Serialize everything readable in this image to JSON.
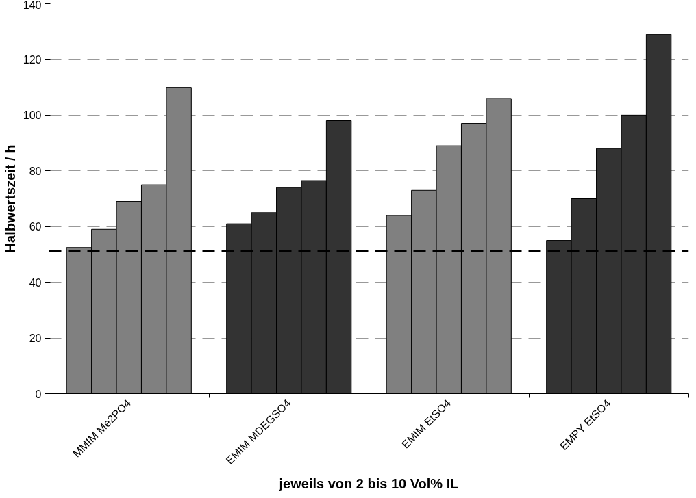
{
  "chart_data": {
    "type": "bar",
    "xlabel": "jeweils von 2 bis 10 Vol% IL",
    "ylabel": "Halbwertszeit / h",
    "categories": [
      "MMIM Me2PO4",
      "EMIM MDEGSO4",
      "EMIM EtSO4",
      "EMPY EtSO4"
    ],
    "series": [
      {
        "colors": [
          "#808080",
          "#333333",
          "#808080",
          "#333333"
        ],
        "values": [
          52.5,
          61,
          64,
          55
        ]
      },
      {
        "colors": [
          "#808080",
          "#333333",
          "#808080",
          "#333333"
        ],
        "values": [
          59,
          65,
          73,
          70
        ]
      },
      {
        "colors": [
          "#808080",
          "#333333",
          "#808080",
          "#333333"
        ],
        "values": [
          69,
          74,
          89,
          88
        ]
      },
      {
        "colors": [
          "#808080",
          "#333333",
          "#808080",
          "#333333"
        ],
        "values": [
          75,
          76.5,
          97,
          100
        ]
      },
      {
        "colors": [
          "#808080",
          "#333333",
          "#808080",
          "#333333"
        ],
        "values": [
          110,
          98,
          106,
          129
        ]
      }
    ],
    "ylim": [
      0,
      140
    ],
    "yticks": [
      0,
      20,
      40,
      60,
      80,
      100,
      120,
      140
    ],
    "grid": "y",
    "ref_lines": [
      {
        "axis": "y",
        "value": 51.3,
        "color": "#000000",
        "line_style": "dashed"
      }
    ]
  }
}
